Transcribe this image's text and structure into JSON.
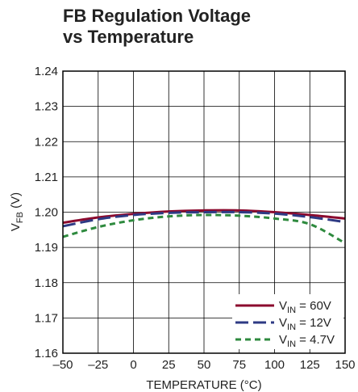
{
  "chart_data": {
    "type": "line",
    "title_lines": [
      "FB Regulation Voltage",
      "vs Temperature"
    ],
    "xlabel": "TEMPERATURE (°C)",
    "ylabel": {
      "main": "V",
      "sub": "FB",
      "unit": " (V)"
    },
    "xlim": [
      -50,
      150
    ],
    "ylim": [
      1.16,
      1.24
    ],
    "xticks": [
      -50,
      -25,
      0,
      25,
      50,
      75,
      100,
      125,
      150
    ],
    "xtick_labels": [
      "–50",
      "–25",
      "0",
      "25",
      "50",
      "75",
      "100",
      "125",
      "150"
    ],
    "yticks": [
      1.16,
      1.17,
      1.18,
      1.19,
      1.2,
      1.21,
      1.22,
      1.23,
      1.24
    ],
    "ytick_labels": [
      "1.16",
      "1.17",
      "1.18",
      "1.19",
      "1.20",
      "1.21",
      "1.22",
      "1.23",
      "1.24"
    ],
    "grid": true,
    "legend_position": "bottom-right",
    "x": [
      -50,
      -25,
      0,
      25,
      50,
      75,
      100,
      125,
      150
    ],
    "series": [
      {
        "name": "VIN = 60V",
        "label": {
          "main": "V",
          "sub": "IN",
          "value": " = 60V"
        },
        "color": "#8b0a2e",
        "dash": "solid",
        "values": [
          1.197,
          1.1985,
          1.1995,
          1.2002,
          1.2005,
          1.2005,
          1.2,
          1.1992,
          1.1982
        ]
      },
      {
        "name": "VIN = 12V",
        "label": {
          "main": "V",
          "sub": "IN",
          "value": " = 12V"
        },
        "color": "#2e3a84",
        "dash": "long",
        "values": [
          1.196,
          1.198,
          1.1992,
          1.1998,
          1.2,
          1.2,
          1.1996,
          1.1986,
          1.1972
        ]
      },
      {
        "name": "VIN = 4.7V",
        "label": {
          "main": "V",
          "sub": "IN",
          "value": " = 4.7V"
        },
        "color": "#2e8a3e",
        "dash": "short",
        "values": [
          1.193,
          1.1958,
          1.1977,
          1.1988,
          1.1992,
          1.199,
          1.1982,
          1.1966,
          1.1912
        ]
      }
    ]
  }
}
